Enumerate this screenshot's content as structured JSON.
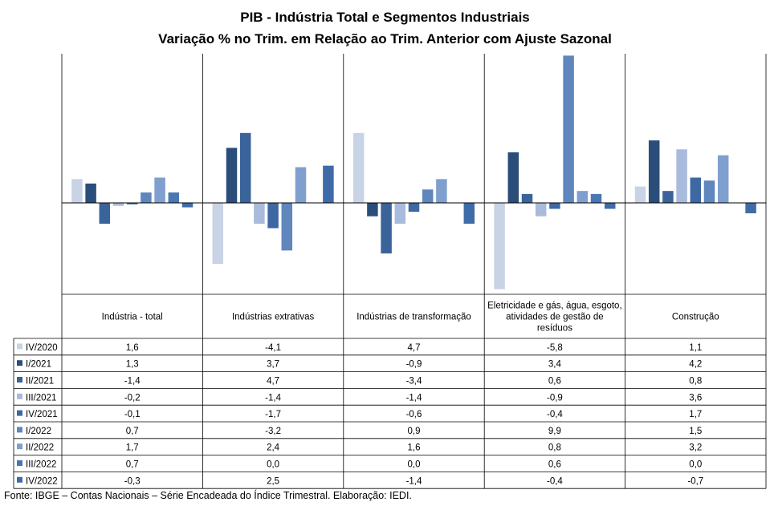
{
  "title": "PIB - Indústria Total e Segmentos Industriais",
  "subtitle": "Variação % no Trim. em Relação ao Trim. Anterior com Ajuste Sazonal",
  "source": "Fonte: IBGE – Contas Nacionais – Série Encadeada do Índice Trimestral. Elaboração: IEDI.",
  "chart_data": {
    "type": "bar",
    "title": "PIB - Indústria Total e Segmentos Industriais",
    "subtitle": "Variação % no Trim. em Relação ao Trim. Anterior com Ajuste Sazonal",
    "categories": [
      "Indústria - total",
      "Indústrias extrativas",
      "Indústrias de transformação",
      "Eletricidade e gás, água, esgoto, atividades de gestão de resíduos",
      "Construção"
    ],
    "category_lines": [
      [
        "Indústria - total"
      ],
      [
        "Indústrias extrativas"
      ],
      [
        "Indústrias de transformação"
      ],
      [
        "Eletricidade e gás, água, esgoto,",
        "atividades de gestão de",
        "resíduos"
      ],
      [
        "Construção"
      ]
    ],
    "series": [
      {
        "name": "IV/2020",
        "color": "#c9d3e6",
        "values": [
          1.6,
          -4.1,
          4.7,
          -5.8,
          1.1
        ],
        "labels": [
          "1,6",
          "-4,1",
          "4,7",
          "-5,8",
          "1,1"
        ]
      },
      {
        "name": "I/2021",
        "color": "#2b4d7a",
        "values": [
          1.3,
          3.7,
          -0.9,
          3.4,
          4.2
        ],
        "labels": [
          "1,3",
          "3,7",
          "-0,9",
          "3,4",
          "4,2"
        ]
      },
      {
        "name": "II/2021",
        "color": "#3a6399",
        "values": [
          -1.4,
          4.7,
          -3.4,
          0.6,
          0.8
        ],
        "labels": [
          "-1,4",
          "4,7",
          "-3,4",
          "0,6",
          "0,8"
        ]
      },
      {
        "name": "III/2021",
        "color": "#a9bbdc",
        "values": [
          -0.2,
          -1.4,
          -1.4,
          -0.9,
          3.6
        ],
        "labels": [
          "-0,2",
          "-1,4",
          "-1,4",
          "-0,9",
          "3,6"
        ]
      },
      {
        "name": "IV/2021",
        "color": "#3d68a3",
        "values": [
          -0.1,
          -1.7,
          -0.6,
          -0.4,
          1.7
        ],
        "labels": [
          "-0,1",
          "-1,7",
          "-0,6",
          "-0,4",
          "1,7"
        ]
      },
      {
        "name": "I/2022",
        "color": "#5f86bd",
        "values": [
          0.7,
          -3.2,
          0.9,
          9.9,
          1.5
        ],
        "labels": [
          "0,7",
          "-3,2",
          "0,9",
          "9,9",
          "1,5"
        ]
      },
      {
        "name": "II/2022",
        "color": "#7f9fcf",
        "values": [
          1.7,
          2.4,
          1.6,
          0.8,
          3.2
        ],
        "labels": [
          "1,7",
          "2,4",
          "1,6",
          "0,8",
          "3,2"
        ]
      },
      {
        "name": "III/2022",
        "color": "#4a77b3",
        "values": [
          0.7,
          0.0,
          0.0,
          0.6,
          0.0
        ],
        "labels": [
          "0,7",
          "0,0",
          "0,0",
          "0,6",
          "0,0"
        ]
      },
      {
        "name": "IV/2022",
        "color": "#3f6ca8",
        "values": [
          -0.3,
          2.5,
          -1.4,
          -0.4,
          -0.7
        ],
        "labels": [
          "-0,3",
          "2,5",
          "-1,4",
          "-0,4",
          "-0,7"
        ]
      }
    ],
    "ylim": [
      -6.0,
      10.0
    ],
    "grid": false,
    "legend": "data-table-left"
  }
}
